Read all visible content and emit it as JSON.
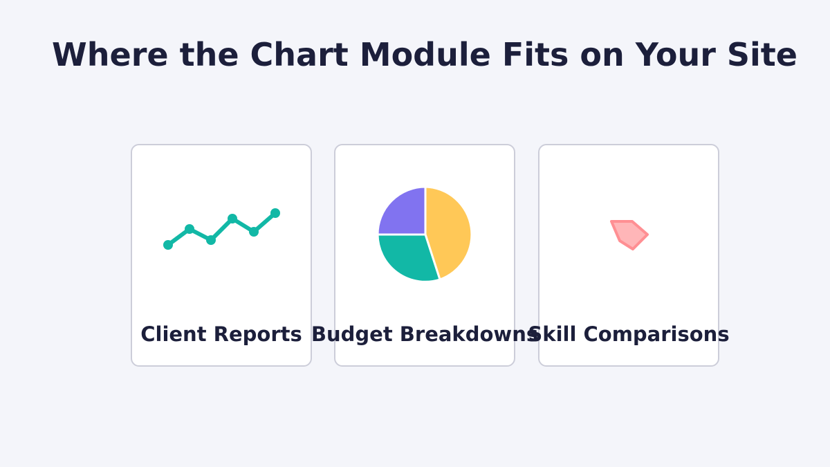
{
  "title": "Where the Chart Module Fits on Your Site",
  "cards": [
    {
      "label": "Client Reports",
      "icon": "line-chart-icon",
      "color": "#12b8a6"
    },
    {
      "label": "Budget Breakdowns",
      "icon": "pie-chart-icon",
      "colors": [
        "#ffc857",
        "#12b8a6",
        "#8173f0"
      ]
    },
    {
      "label": "Skill Comparisons",
      "icon": "radar-chart-icon",
      "color": "#ff8a8e"
    }
  ]
}
